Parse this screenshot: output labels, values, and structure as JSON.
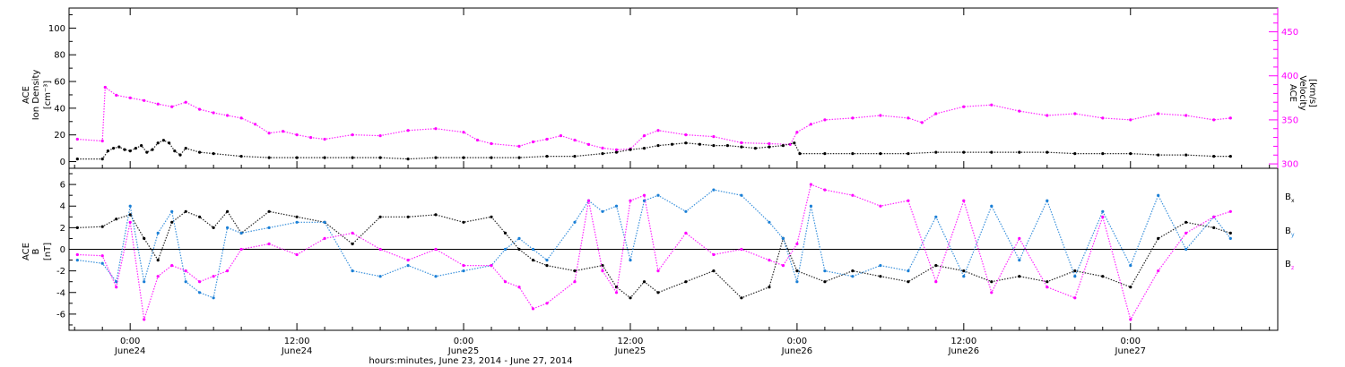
{
  "colors": {
    "density": "#000000",
    "velocity": "#ff00ff",
    "bx": "#000000",
    "by": "#1a7fd6",
    "bz": "#ff00ff",
    "frame": "#000000"
  },
  "chart_data": [
    {
      "type": "scatter",
      "panel": "top",
      "title": "",
      "ylabel_lines": [
        "ACE",
        "Ion Density"
      ],
      "ylabel_unit": "[cm⁻³]",
      "ylim": [
        -5,
        115
      ],
      "yticks": [
        0,
        20,
        40,
        60,
        80,
        100
      ],
      "y2label_lines": [
        "ACE",
        "Velocity"
      ],
      "y2label_unit": "[km/s]",
      "y2lim": [
        295,
        477
      ],
      "y2ticks": [
        300,
        350,
        400,
        450
      ],
      "series": [
        {
          "key": "density",
          "x": [
            -3.8,
            -2.0,
            -1.6,
            -1.2,
            -0.8,
            -0.4,
            0.0,
            0.4,
            0.8,
            1.2,
            1.6,
            2.0,
            2.4,
            2.8,
            3.2,
            3.6,
            4.0,
            5.0,
            6.0,
            8.0,
            10.0,
            12.0,
            14.0,
            16.0,
            18.0,
            20.0,
            22.0,
            24.0,
            26.0,
            28.0,
            30.0,
            32.0,
            34.0,
            35.0,
            36.0,
            37.0,
            38.0,
            39.0,
            40.0,
            41.0,
            42.0,
            43.0,
            44.0,
            45.0,
            46.0,
            47.0,
            47.8,
            48.2,
            50.0,
            52.0,
            54.0,
            56.0,
            58.0,
            60.0,
            62.0,
            64.0,
            66.0,
            68.0,
            70.0,
            72.0,
            74.0,
            76.0,
            78.0,
            79.2
          ],
          "values": [
            2,
            2,
            8,
            10,
            11,
            9,
            8,
            10,
            12,
            7,
            9,
            14,
            16,
            14,
            8,
            5,
            10,
            7,
            6,
            4,
            3,
            3,
            3,
            3,
            3,
            2,
            3,
            3,
            3,
            3,
            4,
            4,
            6,
            7,
            9,
            10,
            12,
            13,
            14,
            13,
            12,
            12,
            11,
            10,
            11,
            12,
            14,
            6,
            6,
            6,
            6,
            6,
            7,
            7,
            7,
            7,
            7,
            6,
            6,
            6,
            5,
            5,
            4,
            4
          ]
        },
        {
          "key": "velocity",
          "x": [
            -3.8,
            -2.0,
            -1.8,
            -1.0,
            0.0,
            1.0,
            2.0,
            3.0,
            4.0,
            5.0,
            6.0,
            7.0,
            8.0,
            9.0,
            10.0,
            11.0,
            12.0,
            13.0,
            14.0,
            16.0,
            18.0,
            20.0,
            22.0,
            24.0,
            25.0,
            26.0,
            28.0,
            29.0,
            30.0,
            31.0,
            32.0,
            33.0,
            34.0,
            35.0,
            36.0,
            37.0,
            38.0,
            40.0,
            42.0,
            44.0,
            46.0,
            47.5,
            48.0,
            49.0,
            50.0,
            52.0,
            54.0,
            56.0,
            57.0,
            58.0,
            60.0,
            62.0,
            64.0,
            66.0,
            68.0,
            70.0,
            72.0,
            74.0,
            76.0,
            78.0,
            79.2
          ],
          "values": [
            328,
            326,
            387,
            378,
            375,
            372,
            368,
            365,
            370,
            362,
            358,
            355,
            352,
            345,
            335,
            337,
            333,
            330,
            328,
            333,
            332,
            338,
            340,
            336,
            327,
            323,
            320,
            325,
            328,
            332,
            327,
            322,
            318,
            316,
            317,
            332,
            338,
            333,
            331,
            324,
            323,
            322,
            336,
            345,
            350,
            352,
            355,
            352,
            347,
            357,
            365,
            367,
            360,
            355,
            357,
            352,
            350,
            357,
            355,
            350,
            352
          ]
        }
      ]
    },
    {
      "type": "scatter",
      "panel": "bottom",
      "title": "",
      "ylabel_lines": [
        "ACE",
        "B"
      ],
      "ylabel_unit": "[nT]",
      "ylim": [
        -7.5,
        7.5
      ],
      "yticks": [
        -6,
        -4,
        -2,
        0,
        2,
        4,
        6
      ],
      "zero_line": true,
      "legend": [
        "Bx",
        "By",
        "Bz"
      ],
      "legend_placement": "right",
      "series": [
        {
          "key": "bx",
          "name": "Bx",
          "x": [
            -3.8,
            -2.0,
            -1.0,
            0.0,
            1.0,
            2.0,
            3.0,
            4.0,
            5.0,
            6.0,
            7.0,
            8.0,
            10.0,
            12.0,
            14.0,
            16.0,
            18.0,
            20.0,
            22.0,
            24.0,
            26.0,
            27.0,
            28.0,
            29.0,
            30.0,
            32.0,
            34.0,
            35.0,
            36.0,
            37.0,
            38.0,
            40.0,
            42.0,
            44.0,
            46.0,
            47.0,
            48.0,
            50.0,
            52.0,
            54.0,
            56.0,
            58.0,
            60.0,
            62.0,
            64.0,
            66.0,
            68.0,
            70.0,
            72.0,
            74.0,
            76.0,
            78.0,
            79.2
          ],
          "values": [
            2.0,
            2.1,
            2.8,
            3.2,
            1.0,
            -1.0,
            2.5,
            3.5,
            3.0,
            2.0,
            3.5,
            1.5,
            3.5,
            3.0,
            2.5,
            0.5,
            3.0,
            3.0,
            3.2,
            2.5,
            3.0,
            1.5,
            0.0,
            -1.0,
            -1.5,
            -2.0,
            -1.5,
            -3.5,
            -4.5,
            -3.0,
            -4.0,
            -3.0,
            -2.0,
            -4.5,
            -3.5,
            1.0,
            -2.0,
            -3.0,
            -2.0,
            -2.5,
            -3.0,
            -1.5,
            -2.0,
            -3.0,
            -2.5,
            -3.0,
            -2.0,
            -2.5,
            -3.5,
            1.0,
            2.5,
            2.0,
            1.5
          ]
        },
        {
          "key": "by",
          "name": "By",
          "x": [
            -3.8,
            -2.0,
            -1.0,
            0.0,
            1.0,
            2.0,
            3.0,
            4.0,
            5.0,
            6.0,
            7.0,
            8.0,
            10.0,
            12.0,
            14.0,
            16.0,
            18.0,
            20.0,
            22.0,
            24.0,
            26.0,
            27.0,
            28.0,
            29.0,
            30.0,
            32.0,
            33.0,
            34.0,
            35.0,
            36.0,
            37.0,
            38.0,
            40.0,
            42.0,
            44.0,
            46.0,
            47.0,
            48.0,
            49.0,
            50.0,
            52.0,
            54.0,
            56.0,
            58.0,
            60.0,
            62.0,
            64.0,
            66.0,
            68.0,
            70.0,
            72.0,
            74.0,
            76.0,
            78.0,
            79.2
          ],
          "values": [
            -1.0,
            -1.3,
            -3.0,
            4.0,
            -3.0,
            1.5,
            3.5,
            -3.0,
            -4.0,
            -4.5,
            2.0,
            1.5,
            2.0,
            2.5,
            2.5,
            -2.0,
            -2.5,
            -1.5,
            -2.5,
            -2.0,
            -1.5,
            0.0,
            1.0,
            0.0,
            -1.0,
            2.5,
            4.5,
            3.5,
            4.0,
            -1.0,
            4.5,
            5.0,
            3.5,
            5.5,
            5.0,
            2.5,
            1.0,
            -3.0,
            4.0,
            -2.0,
            -2.5,
            -1.5,
            -2.0,
            3.0,
            -2.5,
            4.0,
            -1.0,
            4.5,
            -2.5,
            3.5,
            -1.5,
            5.0,
            0.0,
            3.0,
            1.0
          ]
        },
        {
          "key": "bz",
          "name": "Bz",
          "x": [
            -3.8,
            -2.0,
            -1.0,
            0.0,
            1.0,
            2.0,
            3.0,
            4.0,
            5.0,
            6.0,
            7.0,
            8.0,
            10.0,
            12.0,
            14.0,
            16.0,
            18.0,
            20.0,
            22.0,
            24.0,
            26.0,
            27.0,
            28.0,
            29.0,
            30.0,
            32.0,
            33.0,
            34.0,
            35.0,
            36.0,
            37.0,
            38.0,
            40.0,
            42.0,
            44.0,
            46.0,
            47.0,
            48.0,
            49.0,
            50.0,
            52.0,
            54.0,
            56.0,
            58.0,
            60.0,
            62.0,
            64.0,
            66.0,
            68.0,
            70.0,
            72.0,
            74.0,
            76.0,
            78.0,
            79.2
          ],
          "values": [
            -0.5,
            -0.6,
            -3.5,
            2.5,
            -6.5,
            -2.5,
            -1.5,
            -2.0,
            -3.0,
            -2.5,
            -2.0,
            0.0,
            0.5,
            -0.5,
            1.0,
            1.5,
            0.0,
            -1.0,
            0.0,
            -1.5,
            -1.5,
            -3.0,
            -3.5,
            -5.5,
            -5.0,
            -3.0,
            4.5,
            -2.0,
            -4.0,
            4.5,
            5.0,
            -2.0,
            1.5,
            -0.5,
            0.0,
            -1.0,
            -1.5,
            0.5,
            6.0,
            5.5,
            5.0,
            4.0,
            4.5,
            -3.0,
            4.5,
            -4.0,
            1.0,
            -3.5,
            -4.5,
            3.0,
            -6.5,
            -2.0,
            1.5,
            3.0,
            3.5
          ]
        }
      ]
    }
  ],
  "xaxis": {
    "xlim": [
      -4.4,
      82.6
    ],
    "ticks": [
      {
        "x": 0,
        "time": "0:00",
        "date": "June24"
      },
      {
        "x": 12,
        "time": "12:00",
        "date": "June24"
      },
      {
        "x": 24,
        "time": "0:00",
        "date": "June25"
      },
      {
        "x": 36,
        "time": "12:00",
        "date": "June25"
      },
      {
        "x": 48,
        "time": "0:00",
        "date": "June26"
      },
      {
        "x": 60,
        "time": "12:00",
        "date": "June26"
      },
      {
        "x": 72,
        "time": "0:00",
        "date": "June27"
      }
    ],
    "label": "hours:minutes, June 23, 2014 - June 27, 2014"
  },
  "legend_labels": {
    "bx_main": "B",
    "bx_sub": "x",
    "by_main": "B",
    "by_sub": "y",
    "bz_main": "B",
    "bz_sub": "z"
  }
}
